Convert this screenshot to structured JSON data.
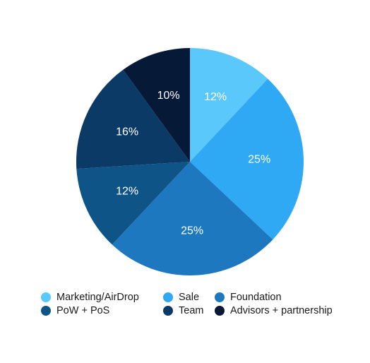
{
  "chart_data": {
    "type": "pie",
    "title": "",
    "categories": [
      "Marketing/AirDrop",
      "Sale",
      "Foundation",
      "PoW + PoS",
      "Team",
      "Advisors + partnership"
    ],
    "values": [
      12,
      25,
      25,
      12,
      16,
      10
    ],
    "labels": [
      "12%",
      "25%",
      "25%",
      "12%",
      "16%",
      "10%"
    ],
    "colors": [
      "#5ac8fa",
      "#30a9f4",
      "#1d78bf",
      "#0f5487",
      "#0b3a66",
      "#061a38"
    ],
    "start_angle": "12 o'clock",
    "direction": "clockwise",
    "legend_placement": "bottom",
    "legend_columns": 3
  }
}
